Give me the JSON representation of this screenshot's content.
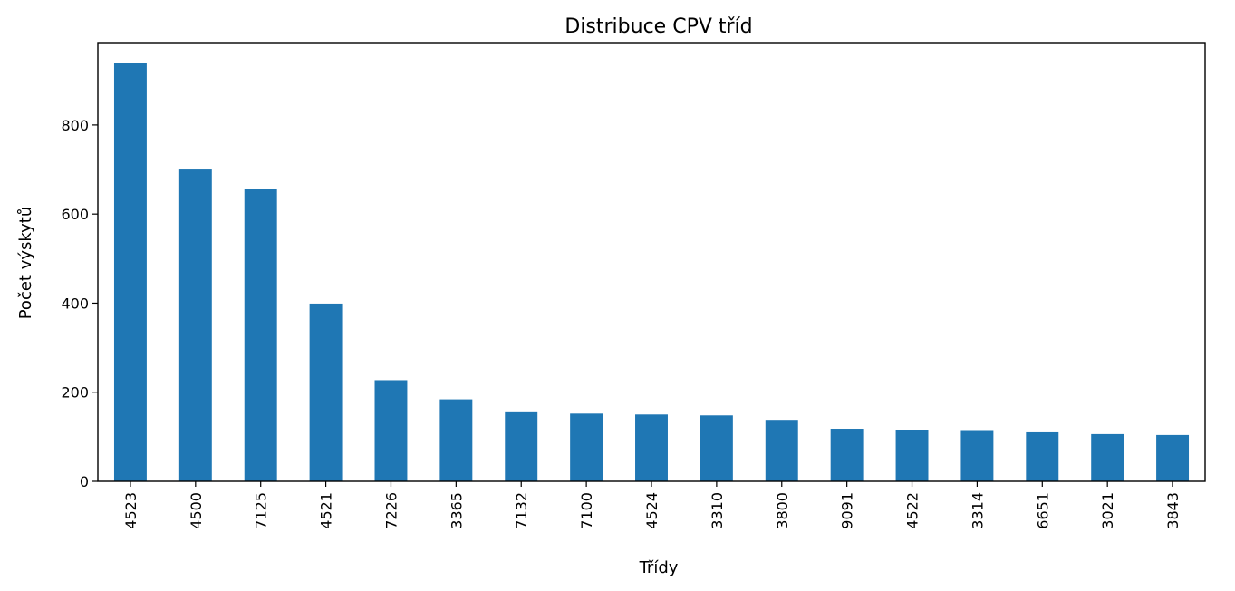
{
  "chart_data": {
    "type": "bar",
    "title": "Distribuce CPV tříd",
    "xlabel": "Třídy",
    "ylabel": "Počet výskytů",
    "categories": [
      "4523",
      "4500",
      "7125",
      "4521",
      "7226",
      "3365",
      "7132",
      "7100",
      "4524",
      "3310",
      "3800",
      "9091",
      "4522",
      "3314",
      "6651",
      "3021",
      "3843"
    ],
    "values": [
      939,
      702,
      657,
      399,
      227,
      184,
      157,
      152,
      150,
      148,
      138,
      118,
      116,
      115,
      110,
      106,
      104
    ],
    "ylim": [
      0,
      985
    ],
    "yticks": [
      0,
      200,
      400,
      600,
      800
    ],
    "grid": false,
    "bar_color": "#1f77b4"
  }
}
